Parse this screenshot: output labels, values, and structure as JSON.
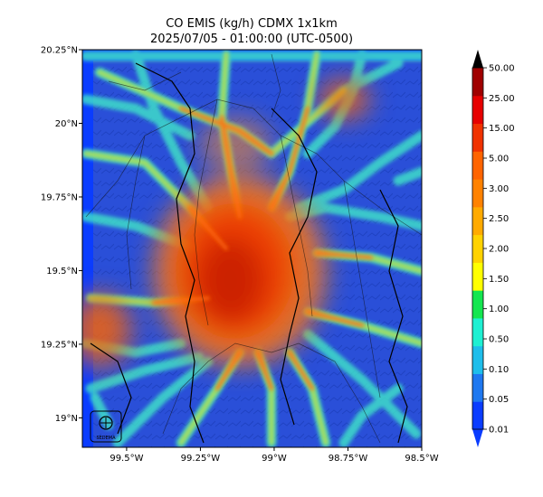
{
  "title_line1": "CO EMIS (kg/h) CDMX 1x1km",
  "title_line2": "2025/07/05 - 01:00:00 (UTC-0500)",
  "map": {
    "lon_range": [
      -99.65,
      -98.5
    ],
    "lat_range": [
      18.9,
      20.25
    ],
    "x_ticks": [
      {
        "value": -99.5,
        "label": "99.5°W"
      },
      {
        "value": -99.25,
        "label": "99.25°W"
      },
      {
        "value": -99.0,
        "label": "99°W"
      },
      {
        "value": -98.75,
        "label": "98.75°W"
      },
      {
        "value": -98.5,
        "label": "98.5°W"
      }
    ],
    "y_ticks": [
      {
        "value": 20.25,
        "label": "20.25°N"
      },
      {
        "value": 20.0,
        "label": "20°N"
      },
      {
        "value": 19.75,
        "label": "19.75°N"
      },
      {
        "value": 19.5,
        "label": "19.5°N"
      },
      {
        "value": 19.25,
        "label": "19.25°N"
      },
      {
        "value": 19.0,
        "label": "19°N"
      }
    ],
    "logo_label": "SEDEMA"
  },
  "colorbar": {
    "labels": [
      "0.01",
      "0.05",
      "0.10",
      "0.50",
      "1.00",
      "1.50",
      "2.00",
      "2.50",
      "3.00",
      "5.00",
      "15.00",
      "25.00",
      "50.00"
    ],
    "colors": [
      "#0a3cff",
      "#1e78f0",
      "#1ebeeb",
      "#1ef0d2",
      "#14e650",
      "#ffff00",
      "#ffd200",
      "#ffaa00",
      "#ff8200",
      "#ff6400",
      "#f03200",
      "#e60000",
      "#a00000"
    ],
    "under_color": "#0a3cff",
    "over_color": "#000000"
  }
}
